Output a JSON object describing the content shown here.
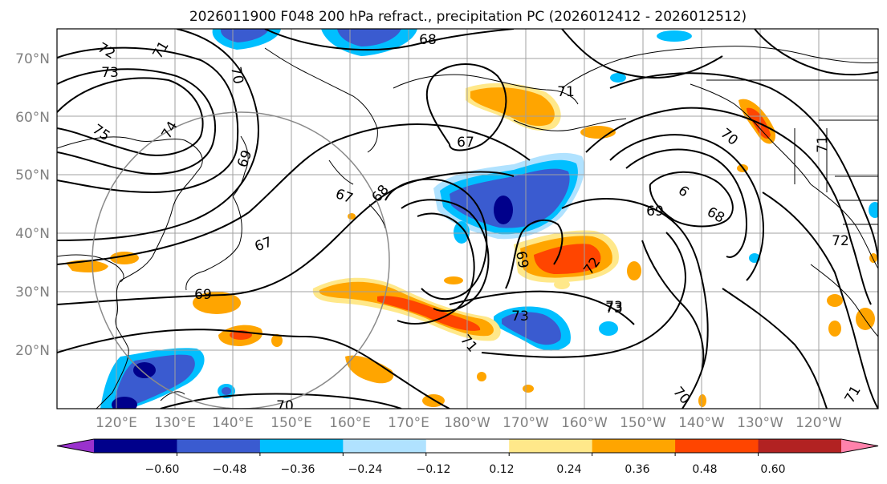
{
  "title": "2026011900 F048 200 hPa refract., precipitation PC (2026012412 - 2026012512)",
  "lat_labels": [
    "70°N",
    "60°N",
    "50°N",
    "40°N",
    "30°N",
    "20°N"
  ],
  "lon_labels": [
    "120°E",
    "130°E",
    "140°E",
    "150°E",
    "160°E",
    "170°E",
    "180°W",
    "170°W",
    "160°W",
    "150°W",
    "140°W",
    "130°W",
    "120°W"
  ],
  "colorbar": {
    "colors": [
      "#9a32cd",
      "#00008b",
      "#3a5bd0",
      "#00bfff",
      "#b0e2ff",
      "#ffffff",
      "#ffe88a",
      "#ffa500",
      "#ff4500",
      "#b22222",
      "#ff82ab"
    ],
    "tick_labels": [
      "−0.60",
      "−0.48",
      "−0.36",
      "−0.24",
      "−0.12",
      "0.12",
      "0.24",
      "0.36",
      "0.48",
      "0.60"
    ]
  },
  "contour_labels": [
    "68",
    "72",
    "73",
    "71",
    "70",
    "75",
    "74",
    "67",
    "68",
    "67",
    "67",
    "69",
    "73",
    "73",
    "71",
    "69",
    "72",
    "73",
    "70",
    "69",
    "68",
    "6",
    "70",
    "72",
    "71",
    "70",
    "69",
    "71",
    "71"
  ]
}
